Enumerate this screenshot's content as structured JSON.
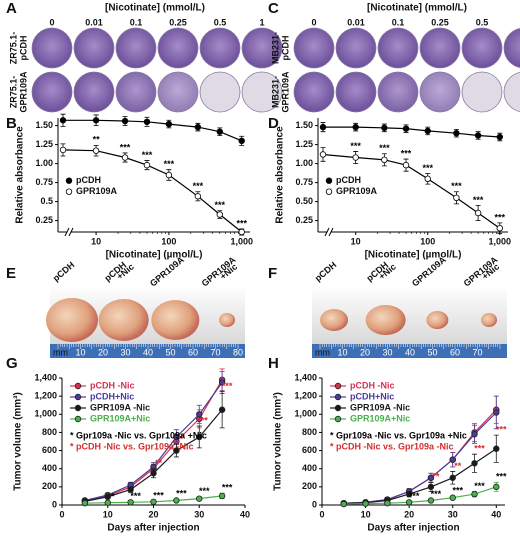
{
  "figure_panels": [
    {
      "letter": "A",
      "header": "[Nicotinate] (mmol/L)",
      "columns": [
        0,
        0.01,
        0.1,
        0.25,
        0.5,
        1
      ],
      "rows": [
        [
          "ZR75.1-",
          "pCDH"
        ],
        [
          "ZR75.1-",
          "GPR109A"
        ]
      ]
    },
    {
      "letter": "C",
      "header": "[Nicotinate] (mmol/L)",
      "columns": [
        0,
        0.01,
        0.1,
        0.25,
        0.5,
        1
      ],
      "rows": [
        [
          "MB231-",
          "pCDH"
        ],
        [
          "MB231-",
          "GPR109A"
        ]
      ]
    }
  ],
  "tumor_panels": [
    {
      "letter": "E",
      "labels": [
        [
          "pCDH"
        ],
        [
          "pCDH",
          "+Nic"
        ],
        [
          "GPR109A"
        ],
        [
          "GPR109A",
          "+Nic"
        ]
      ],
      "ruler_unit": "mm",
      "ruler_labels": [
        10,
        20,
        30,
        40,
        50,
        60,
        70,
        80
      ]
    },
    {
      "letter": "F",
      "labels": [
        [
          "pCDH"
        ],
        [
          "pCDH",
          "+Nic"
        ],
        [
          "GPR109A"
        ],
        [
          "GPR109A",
          "+Nic"
        ]
      ],
      "ruler_unit": "mm",
      "ruler_labels": [
        10,
        20,
        30,
        40,
        50,
        60,
        70
      ]
    }
  ],
  "chart_data": [
    {
      "type": "line",
      "panel": "B",
      "ylabel": "Relative absorbance",
      "xlabel": "[Nicotinate] (µmol/L)",
      "xscale": "log",
      "x_axis_break": true,
      "x": [
        0,
        10,
        25,
        50,
        100,
        250,
        500,
        1000
      ],
      "xlim": [
        3,
        1300
      ],
      "xticks": [
        10,
        100,
        {
          "value": 1000,
          "label": "1,000"
        }
      ],
      "ylim": [
        0.1,
        1.6
      ],
      "yticks": [
        0.25,
        0.5,
        0.75,
        {
          "value": 1,
          "label": "1.00"
        },
        1.25,
        {
          "value": 1.5,
          "label": "1.50"
        }
      ],
      "legend": "center left",
      "series": [
        {
          "name": "pCDH",
          "color": "#000000",
          "marker": "filled",
          "values": [
            1.57,
            1.57,
            1.56,
            1.55,
            1.52,
            1.48,
            1.42,
            1.3
          ],
          "errors": [
            0.08,
            0.07,
            0.06,
            0.06,
            0.05,
            0.05,
            0.05,
            0.06
          ]
        },
        {
          "name": "GPR109A",
          "color": "#000000",
          "marker": "open",
          "values": [
            1.18,
            1.17,
            1.08,
            0.98,
            0.85,
            0.57,
            0.33,
            0.1
          ],
          "errors": [
            0.08,
            0.07,
            0.06,
            0.06,
            0.07,
            0.06,
            0.05,
            0.04
          ],
          "annotations": [
            null,
            "**",
            "***",
            "***",
            "***",
            "***",
            "***",
            "***"
          ],
          "annotation_color": "#000000"
        }
      ]
    },
    {
      "type": "line",
      "panel": "D",
      "ylabel": "Relative absorbance",
      "xlabel": "[Nicotinate] (µmol/L)",
      "xscale": "log",
      "x_axis_break": true,
      "x": [
        0,
        10,
        25,
        50,
        100,
        250,
        500,
        1000
      ],
      "xlim": [
        3,
        1300
      ],
      "xticks": [
        10,
        100,
        {
          "value": 1000,
          "label": "1,000"
        }
      ],
      "ylim": [
        0.1,
        1.6
      ],
      "yticks": [
        0.25,
        {
          "value": 0.5,
          "label": "0.50"
        },
        0.75,
        {
          "value": 1,
          "label": "1.00"
        },
        1.25,
        {
          "value": 1.5,
          "label": "1.50"
        }
      ],
      "legend": "center left",
      "series": [
        {
          "name": "pCDH",
          "color": "#000000",
          "marker": "filled",
          "values": [
            1.48,
            1.48,
            1.47,
            1.46,
            1.43,
            1.4,
            1.37,
            1.35
          ],
          "errors": [
            0.06,
            0.05,
            0.05,
            0.05,
            0.05,
            0.05,
            0.05,
            0.05
          ]
        },
        {
          "name": "GPR109A",
          "color": "#000000",
          "marker": "open",
          "values": [
            1.12,
            1.08,
            1.05,
            0.98,
            0.8,
            0.55,
            0.35,
            0.15
          ],
          "errors": [
            0.09,
            0.08,
            0.08,
            0.08,
            0.07,
            0.08,
            0.1,
            0.07
          ],
          "annotations": [
            null,
            "***",
            "***",
            "***",
            "***",
            "***",
            "***",
            "***"
          ],
          "annotation_color": "#000000"
        }
      ]
    },
    {
      "type": "line",
      "panel": "G",
      "ylabel": "Tumor volume (mm³)",
      "xlabel": "Days after injection",
      "x": [
        5,
        10,
        15,
        20,
        25,
        30,
        35
      ],
      "xlim": [
        0,
        40
      ],
      "xticks": [
        0,
        10,
        20,
        30,
        40
      ],
      "ylim": [
        0,
        1400
      ],
      "yticks": [
        0,
        200,
        400,
        600,
        800,
        {
          "value": 1000,
          "label": "1,000"
        },
        {
          "value": 1200,
          "label": "1,200"
        },
        {
          "value": 1400,
          "label": "1,400"
        }
      ],
      "legend": "upper left",
      "notes": [
        {
          "text": "* Gpr109a -Nic vs. Gpr109a +Nic",
          "color": "#000000"
        },
        {
          "text": "* pCDH -Nic vs. Gpr109a -Nic",
          "color": "#d62c2c"
        }
      ],
      "series": [
        {
          "name": "pCDH -Nic",
          "color": "#d9304f",
          "marker": "filled",
          "values": [
            50,
            100,
            200,
            400,
            700,
            950,
            1380
          ],
          "errors": [
            10,
            20,
            30,
            50,
            80,
            100,
            120
          ]
        },
        {
          "name": "pCDH+Nic",
          "color": "#4b3a9a",
          "marker": "filled",
          "values": [
            50,
            110,
            220,
            420,
            750,
            1000,
            1350
          ],
          "errors": [
            10,
            20,
            30,
            50,
            80,
            100,
            120
          ]
        },
        {
          "name": "GPR109A -Nic",
          "color": "#1a1a1a",
          "marker": "filled",
          "values": [
            40,
            90,
            170,
            350,
            600,
            750,
            1050
          ],
          "errors": [
            10,
            20,
            30,
            50,
            70,
            120,
            200
          ],
          "annotations": [
            null,
            null,
            null,
            "**",
            "*",
            "**",
            "***"
          ],
          "annotation_color": "#d62c2c"
        },
        {
          "name": "GPR109A+Nic",
          "color": "#4caf50",
          "marker": "filled",
          "values": [
            20,
            25,
            30,
            35,
            50,
            70,
            100
          ],
          "errors": [
            5,
            5,
            8,
            10,
            15,
            20,
            30
          ],
          "annotations": [
            null,
            "*",
            "***",
            "***",
            "***",
            "***",
            "***"
          ],
          "annotation_color": "#000000"
        }
      ]
    },
    {
      "type": "line",
      "panel": "H",
      "ylabel": "Tumor volume (mm³)",
      "xlabel": "Days after injection",
      "x": [
        5,
        10,
        15,
        20,
        25,
        30,
        35,
        40
      ],
      "xlim": [
        0,
        42
      ],
      "xticks": [
        0,
        10,
        20,
        30,
        40
      ],
      "ylim": [
        0,
        1400
      ],
      "yticks": [
        0,
        200,
        400,
        600,
        800,
        {
          "value": 1000,
          "label": "1,000"
        },
        {
          "value": 1200,
          "label": "1,200"
        },
        {
          "value": 1400,
          "label": "1,400"
        }
      ],
      "legend": "upper left",
      "notes": [
        {
          "text": "* Gpr109a -Nic vs. Gpr109a +Nic",
          "color": "#000000"
        },
        {
          "text": "* pCDH -Nic vs. Gpr109a -Nic",
          "color": "#d62c2c"
        }
      ],
      "series": [
        {
          "name": "pCDH -Nic",
          "color": "#d9304f",
          "marker": "filled",
          "values": [
            20,
            30,
            60,
            150,
            300,
            500,
            800,
            1050
          ],
          "errors": [
            5,
            8,
            15,
            30,
            50,
            80,
            100,
            150
          ]
        },
        {
          "name": "pCDH+Nic",
          "color": "#4b3a9a",
          "marker": "filled",
          "values": [
            20,
            30,
            60,
            150,
            300,
            500,
            780,
            1020
          ],
          "errors": [
            5,
            8,
            15,
            30,
            50,
            80,
            100,
            180
          ]
        },
        {
          "name": "GPR109A -Nic",
          "color": "#1a1a1a",
          "marker": "filled",
          "values": [
            15,
            25,
            50,
            120,
            200,
            300,
            460,
            620
          ],
          "errors": [
            5,
            8,
            12,
            30,
            50,
            70,
            100,
            150
          ],
          "annotations": [
            null,
            null,
            null,
            null,
            "**",
            "**",
            "***",
            "***"
          ],
          "annotation_color": "#d62c2c"
        },
        {
          "name": "GPR109A+Nic",
          "color": "#4caf50",
          "marker": "filled",
          "values": [
            10,
            15,
            20,
            30,
            50,
            80,
            120,
            200
          ],
          "errors": [
            3,
            4,
            5,
            8,
            12,
            20,
            30,
            50
          ],
          "annotations": [
            null,
            null,
            null,
            "***",
            "***",
            "***",
            "***",
            "***"
          ],
          "annotation_color": "#000000"
        }
      ]
    }
  ]
}
